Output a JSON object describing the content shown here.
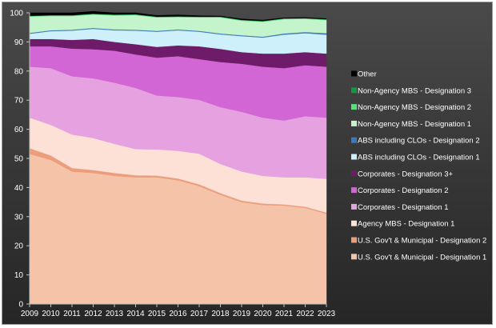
{
  "chart_data": {
    "type": "area",
    "stacked": true,
    "title": "",
    "xlabel": "",
    "ylabel": "",
    "ylim": [
      0,
      100
    ],
    "yticks": [
      0,
      10,
      20,
      30,
      40,
      50,
      60,
      70,
      80,
      90,
      100
    ],
    "x": [
      "2009",
      "2010",
      "2011",
      "2012",
      "2013",
      "2014",
      "2015",
      "2016",
      "2017",
      "2018",
      "2019",
      "2020",
      "2021",
      "2022",
      "2023"
    ],
    "grid": false,
    "legend_position": "right",
    "series": [
      {
        "name": "U.S. Gov't & Municipal - Designation 1",
        "color": "#f5c4a8",
        "values": [
          51.5,
          49.5,
          45.5,
          45,
          44,
          43.5,
          43.5,
          42.5,
          40.5,
          37.5,
          35,
          34,
          33.8,
          33,
          31
        ]
      },
      {
        "name": "U.S. Gov't & Municipal - Designation 2",
        "color": "#ec9e7c",
        "values": [
          2,
          1.5,
          1.2,
          1,
          1,
          0.7,
          0.6,
          0.6,
          0.6,
          0.6,
          0.5,
          0.5,
          0.4,
          0.4,
          0.4
        ]
      },
      {
        "name": "Agency MBS - Designation 1",
        "color": "#fde1d6",
        "values": [
          10.5,
          10.5,
          11.5,
          11,
          10,
          9,
          9,
          9.5,
          10.5,
          10,
          10,
          9.5,
          9.3,
          10.1,
          11.6
        ]
      },
      {
        "name": "Corporates - Designation 1",
        "color": "#e6a2e0",
        "values": [
          17.5,
          19.5,
          20,
          20.5,
          21,
          21,
          18.5,
          18.5,
          18.5,
          19.5,
          20.5,
          20,
          19.5,
          21,
          21
        ]
      },
      {
        "name": "Corporates - Designation 2",
        "color": "#d266d4",
        "values": [
          7,
          7.5,
          9.5,
          10,
          11,
          11.5,
          13,
          14,
          14,
          15.5,
          16.5,
          17.5,
          18,
          17.5,
          17.5
        ]
      },
      {
        "name": "Corporates - Designation 3+",
        "color": "#6e1b6a",
        "values": [
          2.5,
          2.5,
          3,
          3.5,
          3,
          3.5,
          3.7,
          3.7,
          4.4,
          4.5,
          4,
          4.5,
          5,
          4.5,
          4.5
        ]
      },
      {
        "name": "ABS including CLOs - Designation 1",
        "color": "#cdf0fb",
        "values": [
          1.8,
          2.7,
          3.2,
          3.5,
          4,
          4.7,
          5.2,
          5.2,
          5,
          5,
          5.5,
          5.5,
          6.5,
          6.5,
          6.5
        ]
      },
      {
        "name": "ABS including CLOs - Designation 2",
        "color": "#3b79c1",
        "values": [
          0.3,
          0.3,
          0.3,
          0.3,
          0.3,
          0.3,
          0.3,
          0.3,
          0.3,
          0.3,
          0.3,
          0.3,
          0.4,
          0.4,
          0.5
        ]
      },
      {
        "name": "Non-Agency MBS - Designation 1",
        "color": "#c4f4cc",
        "values": [
          5.6,
          4.9,
          4.7,
          4.6,
          4.8,
          5.0,
          4.6,
          4.2,
          4.6,
          5.5,
          5.0,
          5.1,
          4.9,
          4.5,
          4.5
        ]
      },
      {
        "name": "Non-Agency MBS - Designation 2",
        "color": "#59e07e",
        "values": [
          0.2,
          0.2,
          0.2,
          0.2,
          0.2,
          0.2,
          0.2,
          0.2,
          0.2,
          0.2,
          0.2,
          0.2,
          0.2,
          0.2,
          0.2
        ]
      },
      {
        "name": "Non-Agency MBS - Designation 3",
        "color": "#0c9a3c",
        "values": [
          0.1,
          0.1,
          0.1,
          0.1,
          0.1,
          0.1,
          0.1,
          0.1,
          0.1,
          0.1,
          0.1,
          0.1,
          0.1,
          0.1,
          0.1
        ]
      },
      {
        "name": "Other",
        "color": "#000000",
        "values": [
          1.0,
          0.8,
          0.8,
          0.8,
          0.6,
          0.5,
          0.4,
          0.5,
          0.3,
          0.2,
          0.3,
          0.3,
          0.2,
          0.2,
          0.2
        ]
      }
    ]
  }
}
